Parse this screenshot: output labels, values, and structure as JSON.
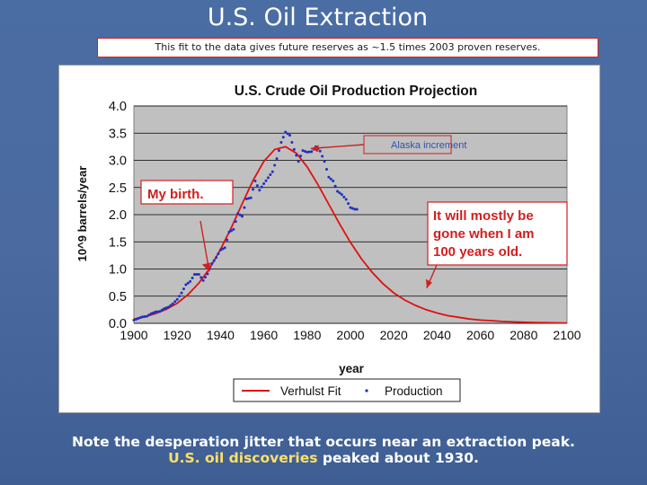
{
  "slide": {
    "title": "U.S. Oil Extraction",
    "subtitle": "This fit to the data gives future reserves as ~1.5 times 2003 proven reserves.",
    "note_line1": "Note the desperation jitter that occurs near an extraction peak.",
    "note_line2_highlight": "U.S. oil discoveries",
    "note_line2_rest": " peaked about 1930."
  },
  "colors": {
    "fit_line": "#e01010",
    "production_dots": "#2030c0",
    "plot_background": "#c0c0c0",
    "annotation_text": "#d02020",
    "alaska_text": "#3050b0",
    "highlight_text": "#ffe066"
  },
  "chart_data": {
    "type": "scatter",
    "title": "U.S. Crude Oil Production Projection",
    "xlabel": "year",
    "ylabel": "10^9 barrels/year",
    "xlim": [
      1900,
      2100
    ],
    "ylim": [
      0,
      4.0
    ],
    "x_ticks": [
      "1900",
      "1920",
      "1940",
      "1960",
      "1980",
      "2000",
      "2020",
      "2040",
      "2060",
      "2080",
      "2100"
    ],
    "y_ticks": [
      "0.0",
      "0.5",
      "1.0",
      "1.5",
      "2.0",
      "2.5",
      "3.0",
      "3.5",
      "4.0"
    ],
    "grid": true,
    "legend_position": "bottom",
    "series": [
      {
        "name": "Verhulst Fit",
        "kind": "line",
        "x": [
          1900,
          1905,
          1910,
          1915,
          1920,
          1925,
          1930,
          1935,
          1940,
          1945,
          1950,
          1955,
          1960,
          1965,
          1970,
          1975,
          1980,
          1985,
          1990,
          1995,
          2000,
          2005,
          2010,
          2015,
          2020,
          2025,
          2030,
          2035,
          2040,
          2045,
          2050,
          2055,
          2060,
          2065,
          2070,
          2075,
          2080,
          2085,
          2090,
          2095,
          2100
        ],
        "y": [
          0.08,
          0.12,
          0.18,
          0.26,
          0.37,
          0.53,
          0.74,
          1.01,
          1.36,
          1.76,
          2.2,
          2.63,
          2.98,
          3.2,
          3.25,
          3.13,
          2.88,
          2.55,
          2.19,
          1.83,
          1.49,
          1.19,
          0.94,
          0.73,
          0.56,
          0.43,
          0.33,
          0.25,
          0.19,
          0.14,
          0.11,
          0.08,
          0.06,
          0.05,
          0.035,
          0.027,
          0.02,
          0.015,
          0.011,
          0.008,
          0.006
        ]
      },
      {
        "name": "Production",
        "kind": "scatter",
        "x": [
          1900,
          1902,
          1904,
          1906,
          1908,
          1910,
          1912,
          1914,
          1916,
          1918,
          1920,
          1922,
          1924,
          1926,
          1928,
          1930,
          1932,
          1934,
          1936,
          1938,
          1940,
          1942,
          1944,
          1946,
          1948,
          1950,
          1952,
          1954,
          1956,
          1958,
          1960,
          1962,
          1964,
          1966,
          1968,
          1970,
          1972,
          1974,
          1976,
          1978,
          1980,
          1982,
          1984,
          1986,
          1988,
          1990,
          1992,
          1994,
          1996,
          1998,
          2000,
          2002
        ],
        "y": [
          0.06,
          0.09,
          0.12,
          0.13,
          0.18,
          0.21,
          0.22,
          0.27,
          0.3,
          0.36,
          0.44,
          0.56,
          0.71,
          0.77,
          0.9,
          0.9,
          0.79,
          0.91,
          1.1,
          1.21,
          1.35,
          1.39,
          1.68,
          1.73,
          2.02,
          1.97,
          2.29,
          2.31,
          2.62,
          2.45,
          2.57,
          2.68,
          2.79,
          3.03,
          3.33,
          3.52,
          3.46,
          3.2,
          2.98,
          3.18,
          3.15,
          3.16,
          3.25,
          3.17,
          2.98,
          2.69,
          2.62,
          2.43,
          2.37,
          2.28,
          2.13,
          2.1
        ]
      }
    ],
    "annotations": [
      {
        "text": "Alaska increment",
        "x": 1980,
        "y": 3.25
      },
      {
        "text": "My birth.",
        "x": 1934,
        "y": 0.9
      },
      {
        "text": "It will mostly be gone when I am 100 years old.",
        "x": 2034,
        "y": 0.6
      }
    ]
  }
}
